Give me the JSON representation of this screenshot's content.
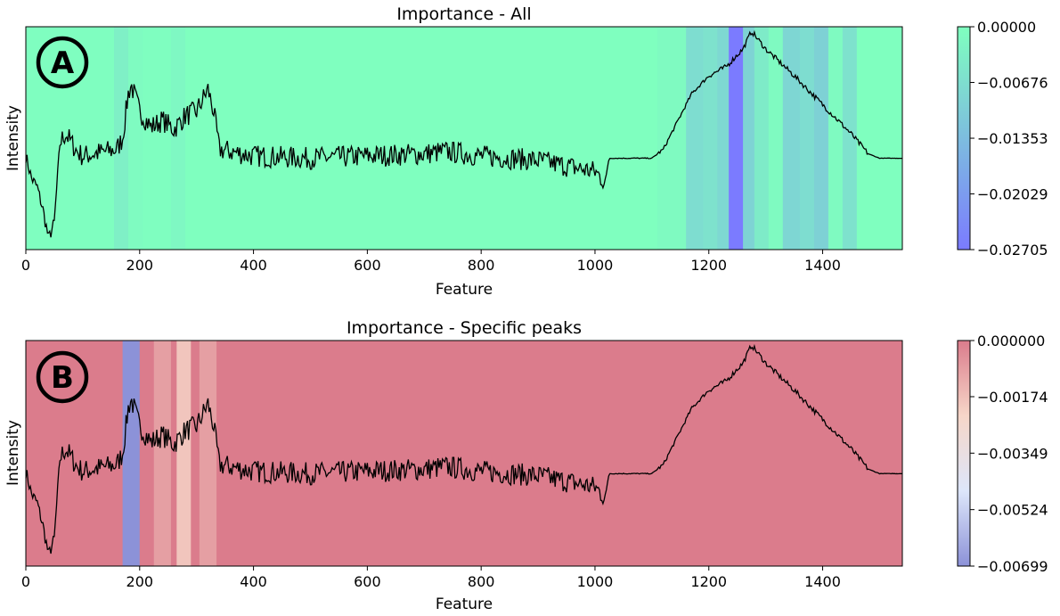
{
  "chart_data": [
    {
      "type": "line",
      "badge": "A",
      "title": "Importance - All",
      "xlabel": "Feature",
      "ylabel": "Intensity",
      "xlim": [
        0,
        1540
      ],
      "xticks": [
        "0",
        "200",
        "400",
        "600",
        "800",
        "1000",
        "1200",
        "1400"
      ],
      "xtick_values": [
        0,
        200,
        400,
        600,
        800,
        1000,
        1200,
        1400
      ],
      "y_ticks_shown": false,
      "background": "feature-importance bands",
      "importance_bands": [
        {
          "x0": 0,
          "x1": 155,
          "value": -0.0003
        },
        {
          "x0": 155,
          "x1": 180,
          "value": -0.003
        },
        {
          "x0": 180,
          "x1": 205,
          "value": -0.0008
        },
        {
          "x0": 205,
          "x1": 255,
          "value": -0.0003
        },
        {
          "x0": 255,
          "x1": 280,
          "value": -0.0015
        },
        {
          "x0": 280,
          "x1": 1110,
          "value": 0.0
        },
        {
          "x0": 1110,
          "x1": 1160,
          "value": -0.001
        },
        {
          "x0": 1160,
          "x1": 1190,
          "value": -0.007
        },
        {
          "x0": 1190,
          "x1": 1215,
          "value": -0.006
        },
        {
          "x0": 1215,
          "x1": 1235,
          "value": -0.008
        },
        {
          "x0": 1235,
          "x1": 1260,
          "value": -0.027
        },
        {
          "x0": 1260,
          "x1": 1280,
          "value": -0.009
        },
        {
          "x0": 1280,
          "x1": 1305,
          "value": -0.004
        },
        {
          "x0": 1305,
          "x1": 1330,
          "value": -0.001
        },
        {
          "x0": 1330,
          "x1": 1360,
          "value": -0.0085
        },
        {
          "x0": 1360,
          "x1": 1385,
          "value": -0.007
        },
        {
          "x0": 1385,
          "x1": 1410,
          "value": -0.0095
        },
        {
          "x0": 1410,
          "x1": 1435,
          "value": -0.001
        },
        {
          "x0": 1435,
          "x1": 1460,
          "value": -0.006
        },
        {
          "x0": 1460,
          "x1": 1540,
          "value": 0.0
        }
      ],
      "colorbar": {
        "min": -0.02705,
        "max": 0.0,
        "colors": [
          "#7b7bff",
          "#7fffbf"
        ],
        "ticks": [
          "0.00000",
          "−0.00676",
          "−0.01353",
          "−0.02029",
          "−0.02705"
        ],
        "tick_values": [
          0.0,
          -0.00676,
          -0.01353,
          -0.02029,
          -0.02705
        ]
      },
      "series": [
        {
          "x": [
            0,
            10,
            20,
            30,
            40,
            50,
            60,
            70,
            80,
            90,
            100,
            120,
            140,
            160,
            170,
            180,
            185,
            190,
            200,
            220,
            240,
            260,
            280,
            300,
            320,
            330,
            340,
            360,
            400,
            500,
            600,
            700,
            740,
            800,
            900,
            1000,
            1020,
            1024,
            1100,
            1120,
            1150,
            1170,
            1200,
            1230,
            1260,
            1275,
            1300,
            1350,
            1400,
            1450,
            1480,
            1500,
            1540
          ],
          "y": [
            0.42,
            0.32,
            0.28,
            0.18,
            0.05,
            0.12,
            0.48,
            0.52,
            0.48,
            0.44,
            0.42,
            0.43,
            0.44,
            0.45,
            0.5,
            0.7,
            0.74,
            0.7,
            0.62,
            0.55,
            0.58,
            0.54,
            0.6,
            0.62,
            0.72,
            0.62,
            0.45,
            0.44,
            0.42,
            0.41,
            0.42,
            0.43,
            0.44,
            0.42,
            0.4,
            0.35,
            0.3,
            0.41,
            0.41,
            0.45,
            0.6,
            0.7,
            0.78,
            0.82,
            0.9,
            0.98,
            0.9,
            0.78,
            0.65,
            0.52,
            0.43,
            0.41,
            0.41
          ]
        }
      ]
    },
    {
      "type": "line",
      "badge": "B",
      "title": "Importance - Specific peaks",
      "xlabel": "Feature",
      "ylabel": "Intensity",
      "xlim": [
        0,
        1540
      ],
      "xticks": [
        "0",
        "200",
        "400",
        "600",
        "800",
        "1000",
        "1200",
        "1400"
      ],
      "xtick_values": [
        0,
        200,
        400,
        600,
        800,
        1000,
        1200,
        1400
      ],
      "y_ticks_shown": false,
      "background": "feature-importance bands",
      "importance_bands": [
        {
          "x0": 0,
          "x1": 170,
          "value": 0.0
        },
        {
          "x0": 170,
          "x1": 200,
          "value": -0.00699
        },
        {
          "x0": 200,
          "x1": 225,
          "value": 0.0
        },
        {
          "x0": 225,
          "x1": 255,
          "value": -0.0009
        },
        {
          "x0": 255,
          "x1": 265,
          "value": 0.0
        },
        {
          "x0": 265,
          "x1": 290,
          "value": -0.0019
        },
        {
          "x0": 290,
          "x1": 305,
          "value": 0.0
        },
        {
          "x0": 305,
          "x1": 335,
          "value": -0.0009
        },
        {
          "x0": 335,
          "x1": 1540,
          "value": 0.0
        }
      ],
      "colorbar": {
        "min": -0.00699,
        "max": 0.0,
        "colors": [
          "#8c92d8",
          "#dde6fa",
          "#f6d6c8",
          "#db7c8c"
        ],
        "ticks": [
          "0.000000",
          "−0.00174",
          "−0.00349",
          "−0.00524",
          "−0.00699"
        ],
        "tick_values": [
          0.0,
          -0.00174,
          -0.00349,
          -0.00524,
          -0.00699
        ]
      },
      "series": [
        {
          "x": [
            0,
            10,
            20,
            30,
            40,
            50,
            60,
            70,
            80,
            90,
            100,
            120,
            140,
            160,
            170,
            180,
            185,
            190,
            200,
            220,
            240,
            260,
            280,
            300,
            320,
            330,
            340,
            360,
            400,
            500,
            600,
            700,
            740,
            800,
            900,
            1000,
            1020,
            1024,
            1100,
            1120,
            1150,
            1170,
            1200,
            1230,
            1260,
            1275,
            1300,
            1350,
            1400,
            1450,
            1480,
            1500,
            1540
          ],
          "y": [
            0.42,
            0.32,
            0.28,
            0.18,
            0.05,
            0.12,
            0.48,
            0.52,
            0.48,
            0.44,
            0.42,
            0.43,
            0.44,
            0.45,
            0.5,
            0.7,
            0.74,
            0.7,
            0.62,
            0.55,
            0.58,
            0.54,
            0.6,
            0.62,
            0.72,
            0.62,
            0.45,
            0.44,
            0.42,
            0.41,
            0.42,
            0.43,
            0.44,
            0.42,
            0.4,
            0.35,
            0.3,
            0.41,
            0.41,
            0.45,
            0.6,
            0.7,
            0.78,
            0.82,
            0.9,
            0.98,
            0.9,
            0.78,
            0.65,
            0.52,
            0.43,
            0.41,
            0.41
          ]
        }
      ]
    }
  ]
}
